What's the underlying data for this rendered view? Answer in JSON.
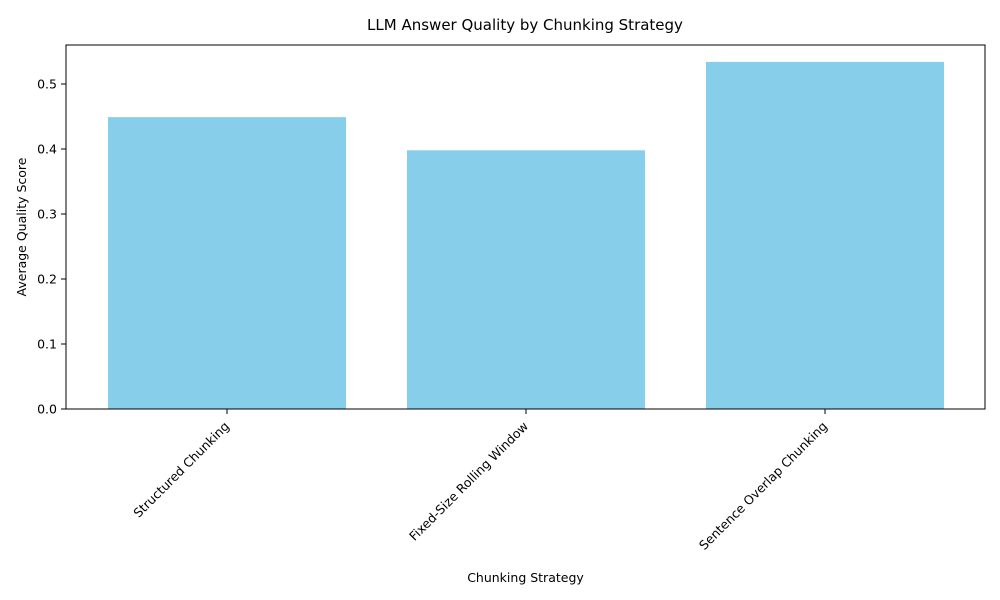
{
  "chart_data": {
    "type": "bar",
    "title": "LLM Answer Quality by Chunking Strategy",
    "xlabel": "Chunking Strategy",
    "ylabel": "Average Quality Score",
    "categories": [
      "Structured Chunking",
      "Fixed-Size Rolling Window",
      "Sentence Overlap Chunking"
    ],
    "values": [
      0.449,
      0.398,
      0.534
    ],
    "ylim": [
      0,
      0.56
    ],
    "yticks": [
      0.0,
      0.1,
      0.2,
      0.3,
      0.4,
      0.5
    ],
    "ytick_labels": [
      "0.0",
      "0.1",
      "0.2",
      "0.3",
      "0.4",
      "0.5"
    ],
    "bar_color": "#87CEEB",
    "grid": false,
    "legend": "none"
  }
}
